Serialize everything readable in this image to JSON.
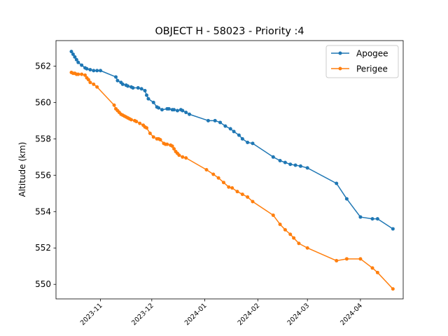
{
  "chart_data": {
    "type": "line",
    "title": "OBJECT H - 58023 - Priority :4",
    "xlabel": "",
    "ylabel": "Altitude (km)",
    "xlim": [
      "2023-10-06",
      "2024-04-26"
    ],
    "ylim": [
      549.2,
      563.4
    ],
    "x_ticks": [
      "2023-11",
      "2023-12",
      "2024-01",
      "2024-02",
      "2024-03",
      "2024-04"
    ],
    "y_ticks": [
      550,
      552,
      554,
      556,
      558,
      560,
      562
    ],
    "grid": false,
    "legend": "top-right",
    "series": [
      {
        "name": "Apogee",
        "color": "#1f77b4",
        "points": [
          [
            "2023-10-15",
            562.8
          ],
          [
            "2023-10-16",
            562.65
          ],
          [
            "2023-10-17",
            562.5
          ],
          [
            "2023-10-18",
            562.35
          ],
          [
            "2023-10-19",
            562.2
          ],
          [
            "2023-10-21",
            562.05
          ],
          [
            "2023-10-23",
            561.9
          ],
          [
            "2023-10-24",
            561.85
          ],
          [
            "2023-10-26",
            561.8
          ],
          [
            "2023-10-28",
            561.75
          ],
          [
            "2023-10-30",
            561.75
          ],
          [
            "2023-11-01",
            561.75
          ],
          [
            "2023-11-10",
            561.4
          ],
          [
            "2023-11-11",
            561.2
          ],
          [
            "2023-11-13",
            561.1
          ],
          [
            "2023-11-14",
            561.0
          ],
          [
            "2023-11-16",
            560.95
          ],
          [
            "2023-11-17",
            560.9
          ],
          [
            "2023-11-19",
            560.85
          ],
          [
            "2023-11-20",
            560.8
          ],
          [
            "2023-11-23",
            560.8
          ],
          [
            "2023-11-25",
            560.75
          ],
          [
            "2023-11-27",
            560.65
          ],
          [
            "2023-11-28",
            560.4
          ],
          [
            "2023-11-29",
            560.2
          ],
          [
            "2023-12-02",
            560.0
          ],
          [
            "2023-12-04",
            559.75
          ],
          [
            "2023-12-05",
            559.7
          ],
          [
            "2023-12-07",
            559.6
          ],
          [
            "2023-12-10",
            559.65
          ],
          [
            "2023-12-11",
            559.65
          ],
          [
            "2023-12-13",
            559.6
          ],
          [
            "2023-12-14",
            559.6
          ],
          [
            "2023-12-16",
            559.55
          ],
          [
            "2023-12-18",
            559.6
          ],
          [
            "2023-12-19",
            559.55
          ],
          [
            "2023-12-21",
            559.45
          ],
          [
            "2023-12-23",
            559.35
          ],
          [
            "2024-01-03",
            559.0
          ],
          [
            "2024-01-07",
            559.0
          ],
          [
            "2024-01-10",
            558.9
          ],
          [
            "2024-01-13",
            558.7
          ],
          [
            "2024-01-16",
            558.55
          ],
          [
            "2024-01-18",
            558.4
          ],
          [
            "2024-01-21",
            558.2
          ],
          [
            "2024-01-23",
            558.0
          ],
          [
            "2024-01-26",
            557.8
          ],
          [
            "2024-01-29",
            557.75
          ],
          [
            "2024-02-10",
            557.0
          ],
          [
            "2024-02-14",
            556.8
          ],
          [
            "2024-02-17",
            556.7
          ],
          [
            "2024-02-20",
            556.6
          ],
          [
            "2024-02-23",
            556.55
          ],
          [
            "2024-02-26",
            556.5
          ],
          [
            "2024-03-01",
            556.4
          ],
          [
            "2024-03-18",
            555.55
          ],
          [
            "2024-03-24",
            554.7
          ],
          [
            "2024-04-01",
            553.7
          ],
          [
            "2024-04-08",
            553.6
          ],
          [
            "2024-04-11",
            553.6
          ],
          [
            "2024-04-20",
            553.05
          ]
        ]
      },
      {
        "name": "Perigee",
        "color": "#ff7f0e",
        "points": [
          [
            "2023-10-15",
            561.65
          ],
          [
            "2023-10-16",
            561.6
          ],
          [
            "2023-10-17",
            561.6
          ],
          [
            "2023-10-18",
            561.55
          ],
          [
            "2023-10-19",
            561.55
          ],
          [
            "2023-10-21",
            561.55
          ],
          [
            "2023-10-23",
            561.5
          ],
          [
            "2023-10-24",
            561.35
          ],
          [
            "2023-10-25",
            561.25
          ],
          [
            "2023-10-26",
            561.1
          ],
          [
            "2023-10-28",
            561.0
          ],
          [
            "2023-10-30",
            560.85
          ],
          [
            "2023-11-09",
            559.85
          ],
          [
            "2023-11-10",
            559.65
          ],
          [
            "2023-11-11",
            559.55
          ],
          [
            "2023-11-12",
            559.45
          ],
          [
            "2023-11-13",
            559.35
          ],
          [
            "2023-11-14",
            559.3
          ],
          [
            "2023-11-15",
            559.25
          ],
          [
            "2023-11-16",
            559.2
          ],
          [
            "2023-11-17",
            559.15
          ],
          [
            "2023-11-18",
            559.1
          ],
          [
            "2023-11-19",
            559.05
          ],
          [
            "2023-11-21",
            559.0
          ],
          [
            "2023-11-22",
            558.95
          ],
          [
            "2023-11-24",
            558.85
          ],
          [
            "2023-11-26",
            558.75
          ],
          [
            "2023-11-27",
            558.65
          ],
          [
            "2023-11-28",
            558.6
          ],
          [
            "2023-11-30",
            558.3
          ],
          [
            "2023-12-02",
            558.1
          ],
          [
            "2023-12-04",
            558.0
          ],
          [
            "2023-12-05",
            558.0
          ],
          [
            "2023-12-06",
            557.95
          ],
          [
            "2023-12-08",
            557.75
          ],
          [
            "2023-12-09",
            557.7
          ],
          [
            "2023-12-10",
            557.7
          ],
          [
            "2023-12-12",
            557.65
          ],
          [
            "2023-12-13",
            557.6
          ],
          [
            "2023-12-14",
            557.45
          ],
          [
            "2023-12-15",
            557.3
          ],
          [
            "2023-12-16",
            557.2
          ],
          [
            "2023-12-17",
            557.1
          ],
          [
            "2023-12-19",
            557.0
          ],
          [
            "2023-12-21",
            556.95
          ],
          [
            "2024-01-02",
            556.3
          ],
          [
            "2024-01-06",
            556.05
          ],
          [
            "2024-01-09",
            555.85
          ],
          [
            "2024-01-12",
            555.6
          ],
          [
            "2024-01-15",
            555.35
          ],
          [
            "2024-01-17",
            555.3
          ],
          [
            "2024-01-20",
            555.1
          ],
          [
            "2024-01-23",
            554.95
          ],
          [
            "2024-01-26",
            554.8
          ],
          [
            "2024-01-29",
            554.55
          ],
          [
            "2024-02-10",
            553.8
          ],
          [
            "2024-02-14",
            553.3
          ],
          [
            "2024-02-17",
            553.0
          ],
          [
            "2024-02-20",
            552.75
          ],
          [
            "2024-02-22",
            552.55
          ],
          [
            "2024-02-25",
            552.25
          ],
          [
            "2024-03-01",
            552.0
          ],
          [
            "2024-03-18",
            551.3
          ],
          [
            "2024-03-24",
            551.4
          ],
          [
            "2024-04-01",
            551.4
          ],
          [
            "2024-04-08",
            550.9
          ],
          [
            "2024-04-11",
            550.65
          ],
          [
            "2024-04-20",
            549.75
          ]
        ]
      }
    ]
  }
}
